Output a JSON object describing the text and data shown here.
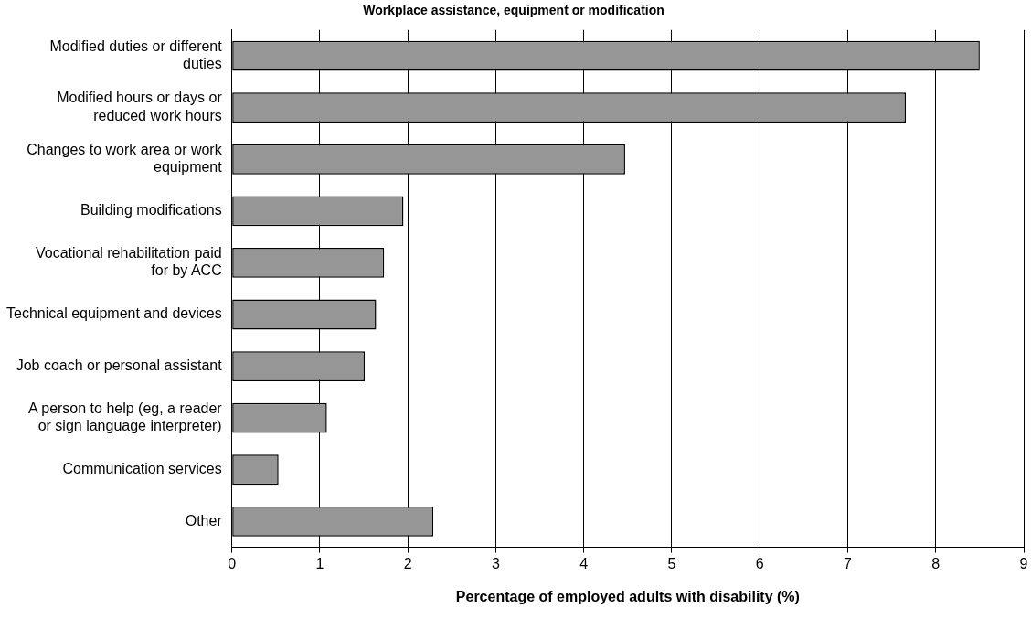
{
  "chart_data": {
    "type": "bar",
    "orientation": "horizontal",
    "title": "Workplace assistance, equipment or modification",
    "xlabel": "Percentage of employed adults with disability (%)",
    "categories": [
      "Modified duties or different duties",
      "Modified hours or days or reduced work hours",
      "Changes to work area or work equipment",
      "Building modifications",
      "Vocational rehabilitation paid for by ACC",
      "Technical equipment and devices",
      "Job coach or personal assistant",
      "A person to help (eg, a reader or sign language interpreter)",
      "Communication services",
      "Other"
    ],
    "values": [
      8.5,
      7.66,
      4.47,
      1.95,
      1.73,
      1.64,
      1.51,
      1.08,
      0.53,
      2.29
    ],
    "color": "#969696",
    "xlim": [
      0,
      9
    ],
    "xticks": [
      0,
      1,
      2,
      3,
      4,
      5,
      6,
      7,
      8,
      9
    ],
    "grid": "x",
    "legend": false
  }
}
